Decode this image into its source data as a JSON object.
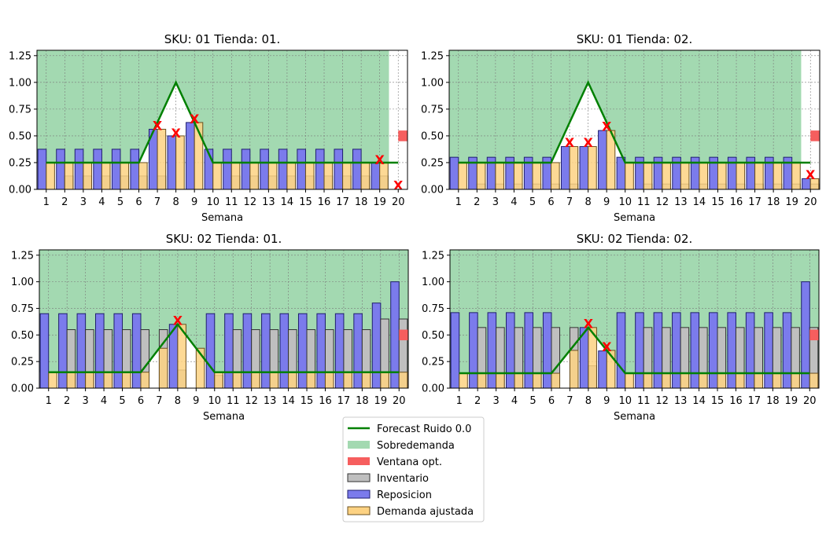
{
  "figure": {
    "legend": {
      "placement": "bottom-center",
      "entries": [
        {
          "label": "Forecast Ruido 0.0",
          "kind": "line",
          "color": "#008000"
        },
        {
          "label": "Sobredemanda",
          "kind": "patch",
          "color": "#a3d9b1"
        },
        {
          "label": "Ventana opt.",
          "kind": "patch",
          "color": "#f65e5e"
        },
        {
          "label": "Inventario",
          "kind": "bar",
          "color": "#bfbfbf"
        },
        {
          "label": "Reposicion",
          "kind": "bar",
          "color": "#7b7bec"
        },
        {
          "label": "Demanda ajustada",
          "kind": "bar",
          "color": "#fdd282"
        }
      ]
    },
    "colors": {
      "forecast": "#008000",
      "sobredemanda": "#a3d9b1",
      "ventana": "#f65e5e",
      "inventario": "#bfbfbf",
      "reposicion": "#7b7bec",
      "demanda": "#fdd282",
      "marker": "#ff0000"
    }
  },
  "chart_data": [
    {
      "type": "bar",
      "title": "SKU: 01 Tienda: 01.",
      "xlabel": "Semana",
      "ylabel": "",
      "ylim": [
        0,
        1.3
      ],
      "yticks": [
        "0.00",
        "0.25",
        "0.50",
        "0.75",
        "1.00",
        "1.25"
      ],
      "categories": [
        "1",
        "2",
        "3",
        "4",
        "5",
        "6",
        "7",
        "8",
        "9",
        "10",
        "11",
        "12",
        "13",
        "14",
        "15",
        "16",
        "17",
        "18",
        "19",
        "20"
      ],
      "grid": true,
      "series": [
        {
          "name": "Forecast Ruido 0.0",
          "values": [
            0.25,
            0.25,
            0.25,
            0.25,
            0.25,
            0.25,
            0.625,
            1.0,
            0.625,
            0.25,
            0.25,
            0.25,
            0.25,
            0.25,
            0.25,
            0.25,
            0.25,
            0.25,
            0.25,
            0.25
          ]
        },
        {
          "name": "Inventario",
          "values": [
            0,
            0.125,
            0.125,
            0.125,
            0.125,
            0.125,
            0.125,
            0,
            0,
            0,
            0.125,
            0.125,
            0.125,
            0.125,
            0.125,
            0.125,
            0.125,
            0.125,
            0.125,
            0
          ]
        },
        {
          "name": "Reposicion",
          "values": [
            0.375,
            0.375,
            0.375,
            0.375,
            0.375,
            0.375,
            0.562,
            0.5,
            0.625,
            0.375,
            0.375,
            0.375,
            0.375,
            0.375,
            0.375,
            0.375,
            0.375,
            0.375,
            0.25,
            0
          ]
        },
        {
          "name": "Demanda ajustada",
          "values": [
            0.25,
            0.25,
            0.25,
            0.25,
            0.25,
            0.25,
            0.562,
            0.5,
            0.625,
            0.25,
            0.25,
            0.25,
            0.25,
            0.25,
            0.25,
            0.25,
            0.25,
            0.25,
            0.25,
            0
          ]
        }
      ],
      "stockout_markers": [
        {
          "x": 7,
          "y": 0.6
        },
        {
          "x": 8,
          "y": 0.53
        },
        {
          "x": 9,
          "y": 0.66
        },
        {
          "x": 19,
          "y": 0.28
        },
        {
          "x": 20,
          "y": 0.04
        }
      ],
      "sobredemanda": {
        "from": 0.5,
        "to": 19.5
      },
      "ventana_opt": {
        "x_from": 20,
        "x_to": 21,
        "y_from": 0.45,
        "y_to": 0.55
      }
    },
    {
      "type": "bar",
      "title": "SKU: 01 Tienda: 02.",
      "xlabel": "Semana",
      "ylabel": "",
      "ylim": [
        0,
        1.3
      ],
      "yticks": [
        "0.00",
        "0.25",
        "0.50",
        "0.75",
        "1.00",
        "1.25"
      ],
      "categories": [
        "1",
        "2",
        "3",
        "4",
        "5",
        "6",
        "7",
        "8",
        "9",
        "10",
        "11",
        "12",
        "13",
        "14",
        "15",
        "16",
        "17",
        "18",
        "19",
        "20"
      ],
      "grid": true,
      "series": [
        {
          "name": "Forecast Ruido 0.0",
          "values": [
            0.25,
            0.25,
            0.25,
            0.25,
            0.25,
            0.25,
            0.625,
            1.0,
            0.625,
            0.25,
            0.25,
            0.25,
            0.25,
            0.25,
            0.25,
            0.25,
            0.25,
            0.25,
            0.25,
            0.25
          ]
        },
        {
          "name": "Inventario",
          "values": [
            0,
            0.05,
            0.05,
            0.05,
            0.05,
            0.05,
            0.05,
            0,
            0,
            0,
            0.05,
            0.05,
            0.05,
            0.05,
            0.05,
            0.05,
            0.05,
            0.05,
            0.05,
            0.05
          ]
        },
        {
          "name": "Reposicion",
          "values": [
            0.3,
            0.3,
            0.3,
            0.3,
            0.3,
            0.3,
            0.4,
            0.4,
            0.55,
            0.3,
            0.3,
            0.3,
            0.3,
            0.3,
            0.3,
            0.3,
            0.3,
            0.3,
            0.3,
            0.1
          ]
        },
        {
          "name": "Demanda ajustada",
          "values": [
            0.25,
            0.25,
            0.25,
            0.25,
            0.25,
            0.25,
            0.4,
            0.4,
            0.55,
            0.25,
            0.25,
            0.25,
            0.25,
            0.25,
            0.25,
            0.25,
            0.25,
            0.25,
            0.25,
            0.1
          ]
        }
      ],
      "stockout_markers": [
        {
          "x": 7,
          "y": 0.44
        },
        {
          "x": 8,
          "y": 0.44
        },
        {
          "x": 9,
          "y": 0.59
        },
        {
          "x": 20,
          "y": 0.14
        }
      ],
      "sobredemanda": {
        "from": 0.5,
        "to": 19.5
      },
      "ventana_opt": {
        "x_from": 20,
        "x_to": 21,
        "y_from": 0.45,
        "y_to": 0.55
      }
    },
    {
      "type": "bar",
      "title": "SKU: 02 Tienda: 01.",
      "xlabel": "Semana",
      "ylabel": "",
      "ylim": [
        0,
        1.3
      ],
      "yticks": [
        "0.00",
        "0.25",
        "0.50",
        "0.75",
        "1.00",
        "1.25"
      ],
      "categories": [
        "1",
        "2",
        "3",
        "4",
        "5",
        "6",
        "7",
        "8",
        "9",
        "10",
        "11",
        "12",
        "13",
        "14",
        "15",
        "16",
        "17",
        "18",
        "19",
        "20"
      ],
      "grid": true,
      "series": [
        {
          "name": "Forecast Ruido 0.0",
          "values": [
            0.15,
            0.15,
            0.15,
            0.15,
            0.15,
            0.15,
            0.375,
            0.6,
            0.375,
            0.15,
            0.15,
            0.15,
            0.15,
            0.15,
            0.15,
            0.15,
            0.15,
            0.15,
            0.15,
            0.15
          ]
        },
        {
          "name": "Inventario",
          "values": [
            0,
            0.55,
            0.55,
            0.55,
            0.55,
            0.55,
            0.55,
            0.17,
            0,
            0.12,
            0.55,
            0.55,
            0.55,
            0.55,
            0.55,
            0.55,
            0.55,
            0.55,
            0.65,
            0.65
          ]
        },
        {
          "name": "Reposicion",
          "values": [
            0.7,
            0.7,
            0.7,
            0.7,
            0.7,
            0.7,
            0,
            0.6,
            0,
            0.7,
            0.7,
            0.7,
            0.7,
            0.7,
            0.7,
            0.7,
            0.7,
            0.7,
            0.8,
            1.0
          ]
        },
        {
          "name": "Demanda ajustada",
          "values": [
            0.15,
            0.15,
            0.15,
            0.15,
            0.15,
            0.15,
            0.375,
            0.6,
            0.375,
            0.15,
            0.15,
            0.15,
            0.15,
            0.15,
            0.15,
            0.15,
            0.15,
            0.15,
            0.15,
            0.15
          ]
        }
      ],
      "stockout_markers": [
        {
          "x": 8,
          "y": 0.64
        }
      ],
      "sobredemanda": {
        "from": 0.5,
        "to": 20.5
      },
      "ventana_opt": {
        "x_from": 20,
        "x_to": 21,
        "y_from": 0.45,
        "y_to": 0.55
      }
    },
    {
      "type": "bar",
      "title": "SKU: 02 Tienda: 02.",
      "xlabel": "Semana",
      "ylabel": "",
      "ylim": [
        0,
        1.3
      ],
      "yticks": [
        "0.00",
        "0.25",
        "0.50",
        "0.75",
        "1.00",
        "1.25"
      ],
      "categories": [
        "1",
        "2",
        "3",
        "4",
        "5",
        "6",
        "7",
        "8",
        "9",
        "10",
        "11",
        "12",
        "13",
        "14",
        "15",
        "16",
        "17",
        "18",
        "19",
        "20"
      ],
      "grid": true,
      "series": [
        {
          "name": "Forecast Ruido 0.0",
          "values": [
            0.14,
            0.14,
            0.14,
            0.14,
            0.14,
            0.14,
            0.355,
            0.57,
            0.355,
            0.14,
            0.14,
            0.14,
            0.14,
            0.14,
            0.14,
            0.14,
            0.14,
            0.14,
            0.14,
            0.14
          ]
        },
        {
          "name": "Inventario",
          "values": [
            0,
            0.57,
            0.57,
            0.57,
            0.57,
            0.57,
            0.57,
            0.21,
            0,
            0,
            0.57,
            0.57,
            0.57,
            0.57,
            0.57,
            0.57,
            0.57,
            0.57,
            0.57,
            0.57
          ]
        },
        {
          "name": "Reposicion",
          "values": [
            0.71,
            0.71,
            0.71,
            0.71,
            0.71,
            0.71,
            0,
            0.57,
            0.35,
            0.71,
            0.71,
            0.71,
            0.71,
            0.71,
            0.71,
            0.71,
            0.71,
            0.71,
            0.71,
            1.0
          ]
        },
        {
          "name": "Demanda ajustada",
          "values": [
            0.14,
            0.14,
            0.14,
            0.14,
            0.14,
            0.14,
            0.355,
            0.57,
            0.355,
            0.14,
            0.14,
            0.14,
            0.14,
            0.14,
            0.14,
            0.14,
            0.14,
            0.14,
            0.14,
            0.14
          ]
        }
      ],
      "stockout_markers": [
        {
          "x": 8,
          "y": 0.61
        },
        {
          "x": 9,
          "y": 0.39
        }
      ],
      "sobredemanda": {
        "from": 0.5,
        "to": 20.5
      },
      "ventana_opt": {
        "x_from": 20,
        "x_to": 21,
        "y_from": 0.45,
        "y_to": 0.55
      }
    }
  ]
}
